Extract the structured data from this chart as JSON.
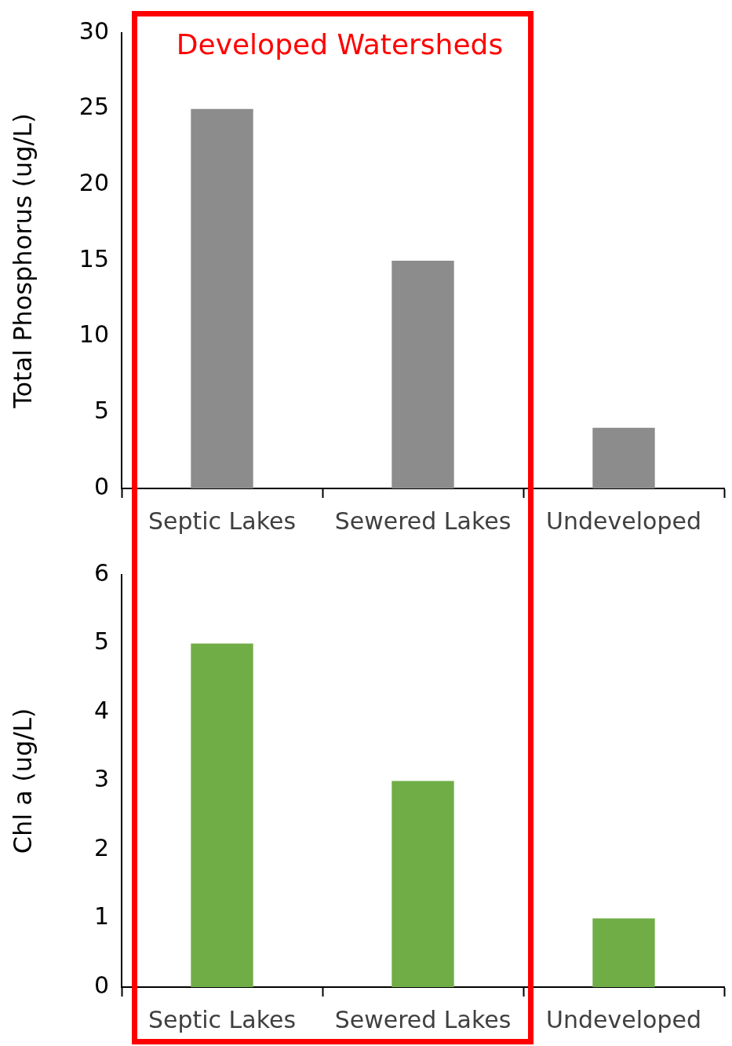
{
  "chart_data": [
    {
      "type": "bar",
      "ylabel": "Total Phosphorus (ug/L)",
      "categories": [
        "Septic Lakes",
        "Sewered Lakes",
        "Undeveloped"
      ],
      "values": [
        25,
        15,
        4
      ],
      "color": "#8c8c8c",
      "ylim": [
        0,
        30
      ],
      "yticks": [
        0,
        5,
        10,
        15,
        20,
        25,
        30
      ],
      "grid": false,
      "legend": false,
      "annotations": [
        "Developed Watersheds"
      ]
    },
    {
      "type": "bar",
      "ylabel": "Chl a (ug/L)",
      "categories": [
        "Septic Lakes",
        "Sewered Lakes",
        "Undeveloped"
      ],
      "values": [
        5,
        3,
        1
      ],
      "color": "#70ad47",
      "ylim": [
        0,
        6
      ],
      "yticks": [
        0,
        1,
        2,
        3,
        4,
        5,
        6
      ],
      "grid": false,
      "legend": false
    }
  ]
}
